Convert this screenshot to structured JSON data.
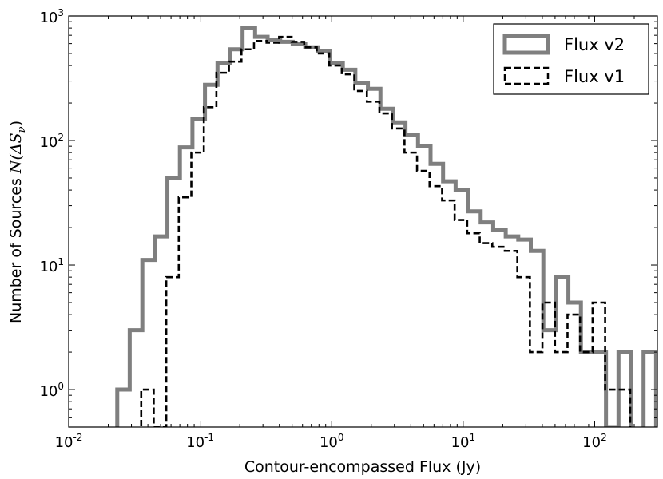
{
  "chart_data": {
    "type": "line",
    "title": "",
    "xlabel": "Contour-encompassed Flux (Jy)",
    "ylabel_text": "Number of Sources ",
    "ylabel_math": "N(ΔS",
    "ylabel_math_sub": "ν",
    "ylabel_math_close": ")",
    "xscale": "log",
    "yscale": "log",
    "xlim": [
      0.01,
      300
    ],
    "ylim": [
      0.5,
      1000
    ],
    "grid": false,
    "legend_position": "top-right",
    "x_ticks": [
      {
        "base": "10",
        "exp": "-2"
      },
      {
        "base": "10",
        "exp": "-1"
      },
      {
        "base": "10",
        "exp": "0"
      },
      {
        "base": "10",
        "exp": "1"
      },
      {
        "base": "10",
        "exp": "2"
      }
    ],
    "y_ticks": [
      {
        "base": "10",
        "exp": "0"
      },
      {
        "base": "10",
        "exp": "1"
      },
      {
        "base": "10",
        "exp": "2"
      },
      {
        "base": "10",
        "exp": "3"
      }
    ],
    "series": [
      {
        "name": "Flux v2",
        "color": "#7f7f7f",
        "style": "solid",
        "edges": [
          0.0234,
          0.0291,
          0.0363,
          0.0452,
          0.0563,
          0.0701,
          0.0873,
          0.1087,
          0.1354,
          0.1686,
          0.21,
          0.2615,
          0.3257,
          0.4057,
          0.5052,
          0.6292,
          0.7836,
          0.9759,
          1.2154,
          1.5136,
          1.885,
          2.3476,
          2.9236,
          3.6411,
          4.5346,
          5.6473,
          7.0331,
          8.759,
          10.908,
          13.585,
          16.919,
          21.071,
          26.241,
          32.681,
          40.7,
          50.688,
          63.125,
          78.615,
          97.906,
          121.93,
          151.85,
          189.11,
          235.52,
          293.31
        ],
        "counts": [
          1,
          3,
          11,
          17,
          50,
          88,
          150,
          280,
          420,
          540,
          800,
          680,
          640,
          620,
          600,
          560,
          520,
          420,
          370,
          290,
          260,
          180,
          140,
          110,
          90,
          65,
          47,
          40,
          27,
          22,
          19,
          17,
          16,
          13,
          3,
          8,
          5,
          2,
          2,
          0.5,
          2,
          0,
          2
        ]
      },
      {
        "name": "Flux v1",
        "color": "#000000",
        "style": "dashed",
        "edges": [
          0.0356,
          0.0443,
          0.0552,
          0.0687,
          0.0856,
          0.1066,
          0.1328,
          0.1654,
          0.206,
          0.2566,
          0.3196,
          0.3981,
          0.4958,
          0.6176,
          0.7692,
          0.9581,
          1.1934,
          1.4865,
          1.8515,
          2.3062,
          2.8726,
          3.5781,
          4.4569,
          5.5514,
          6.9149,
          8.6131,
          10.728,
          13.363,
          16.645,
          20.733,
          25.825,
          32.167,
          40.066,
          49.906,
          62.162,
          77.428,
          96.443,
          120.13,
          149.63,
          186.38
        ],
        "counts": [
          1,
          0.5,
          8,
          35,
          80,
          185,
          350,
          430,
          540,
          630,
          610,
          680,
          620,
          560,
          500,
          400,
          340,
          250,
          205,
          165,
          125,
          80,
          57,
          43,
          33,
          23,
          18,
          15,
          14,
          13,
          8,
          2,
          5,
          2,
          4,
          2,
          5,
          1,
          1,
          0.5
        ]
      }
    ]
  }
}
